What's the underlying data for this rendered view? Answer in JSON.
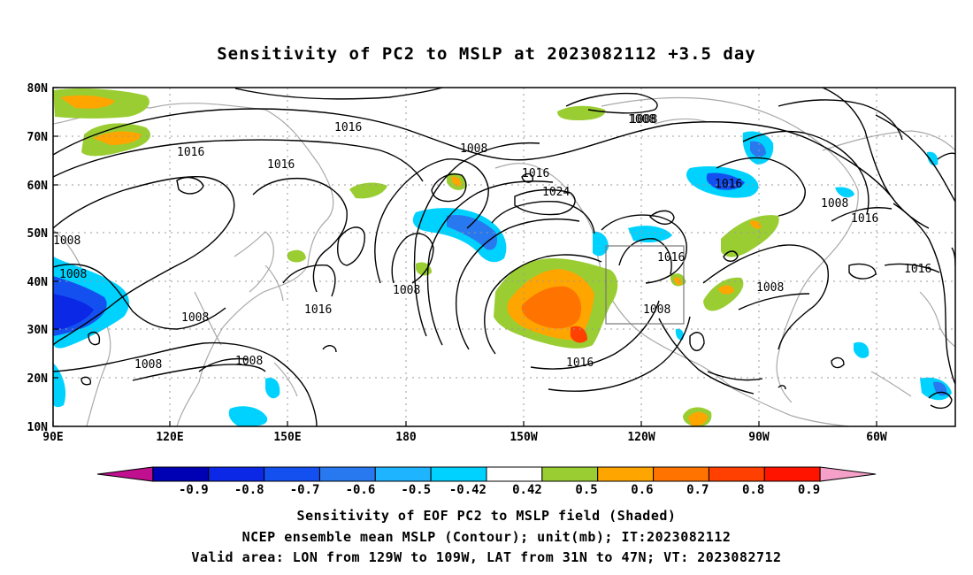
{
  "title": "Sensitivity of PC2 to MSLP at 2023082112 +3.5 day",
  "lat_labels": [
    "80N",
    "70N",
    "60N",
    "50N",
    "40N",
    "30N",
    "20N",
    "10N"
  ],
  "lon_labels": [
    "90E",
    "120E",
    "150E",
    "180",
    "150W",
    "120W",
    "90W",
    "60W"
  ],
  "contour_labels": [
    "1016",
    "1016",
    "1016",
    "1008",
    "1008",
    "1016",
    "1024",
    "1008",
    "1016",
    "1016",
    "1008",
    "1008",
    "1008",
    "1016",
    "1008",
    "1008",
    "1016",
    "1016",
    "1008",
    "1008",
    "1008",
    "1008",
    "1016"
  ],
  "colorbar": {
    "labels": [
      "-0.9",
      "-0.8",
      "-0.7",
      "-0.6",
      "-0.5",
      "-0.42",
      "0.42",
      "0.5",
      "0.6",
      "0.7",
      "0.8",
      "0.9"
    ],
    "colors": [
      "#c0108f",
      "#0000b4",
      "#0a28e6",
      "#1450f0",
      "#2878f0",
      "#1eb4ff",
      "#00d2ff",
      "#ffffff",
      "#9acd32",
      "#ffa500",
      "#ff7300",
      "#ff4000",
      "#ff1400",
      "#f5a0c8"
    ]
  },
  "caption": {
    "line1": "Sensitivity of EOF PC2 to MSLP field (Shaded)",
    "line2": "NCEP ensemble mean MSLP (Contour); unit(mb); IT:2023082112",
    "line3": "Valid area: LON from 129W to 109W, LAT from 31N to 47N; VT: 2023082712"
  }
}
